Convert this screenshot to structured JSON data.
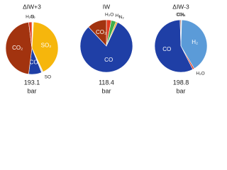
{
  "chart_data": [
    {
      "type": "pie",
      "title": "ΔIW+3",
      "annotation": "193.1",
      "unit_label": "bar",
      "categories": [
        "S₂",
        "SO₂",
        "SO",
        "CO",
        "CO₂",
        "H₂O"
      ],
      "values": [
        1,
        42,
        1,
        8,
        46,
        2
      ],
      "colors": [
        "#f4f4f4",
        "#f6b60c",
        "#e8e8e8",
        "#1f3fa6",
        "#a2330f",
        "#e03b1f"
      ]
    },
    {
      "type": "pie",
      "title": "IW",
      "annotation": "118.4",
      "unit_label": "bar",
      "categories": [
        "H₂O",
        "H₂",
        "N₂",
        "CO",
        "CO₂"
      ],
      "values": [
        3,
        3,
        1,
        81,
        12
      ],
      "colors": [
        "#e03b1f",
        "#3faf4a",
        "#f0a31e",
        "#1f3fa6",
        "#a2330f"
      ]
    },
    {
      "type": "pie",
      "title": "ΔIW-3",
      "annotation": "198.8",
      "unit_label": "bar",
      "categories": [
        "CH₄",
        "H₂",
        "H₂O",
        "CO",
        "CO₂"
      ],
      "values": [
        0.5,
        41,
        1,
        57,
        0.5
      ],
      "colors": [
        "#d9d9d9",
        "#5b9bd8",
        "#e03b1f",
        "#1f3fa6",
        "#a2330f"
      ]
    }
  ]
}
